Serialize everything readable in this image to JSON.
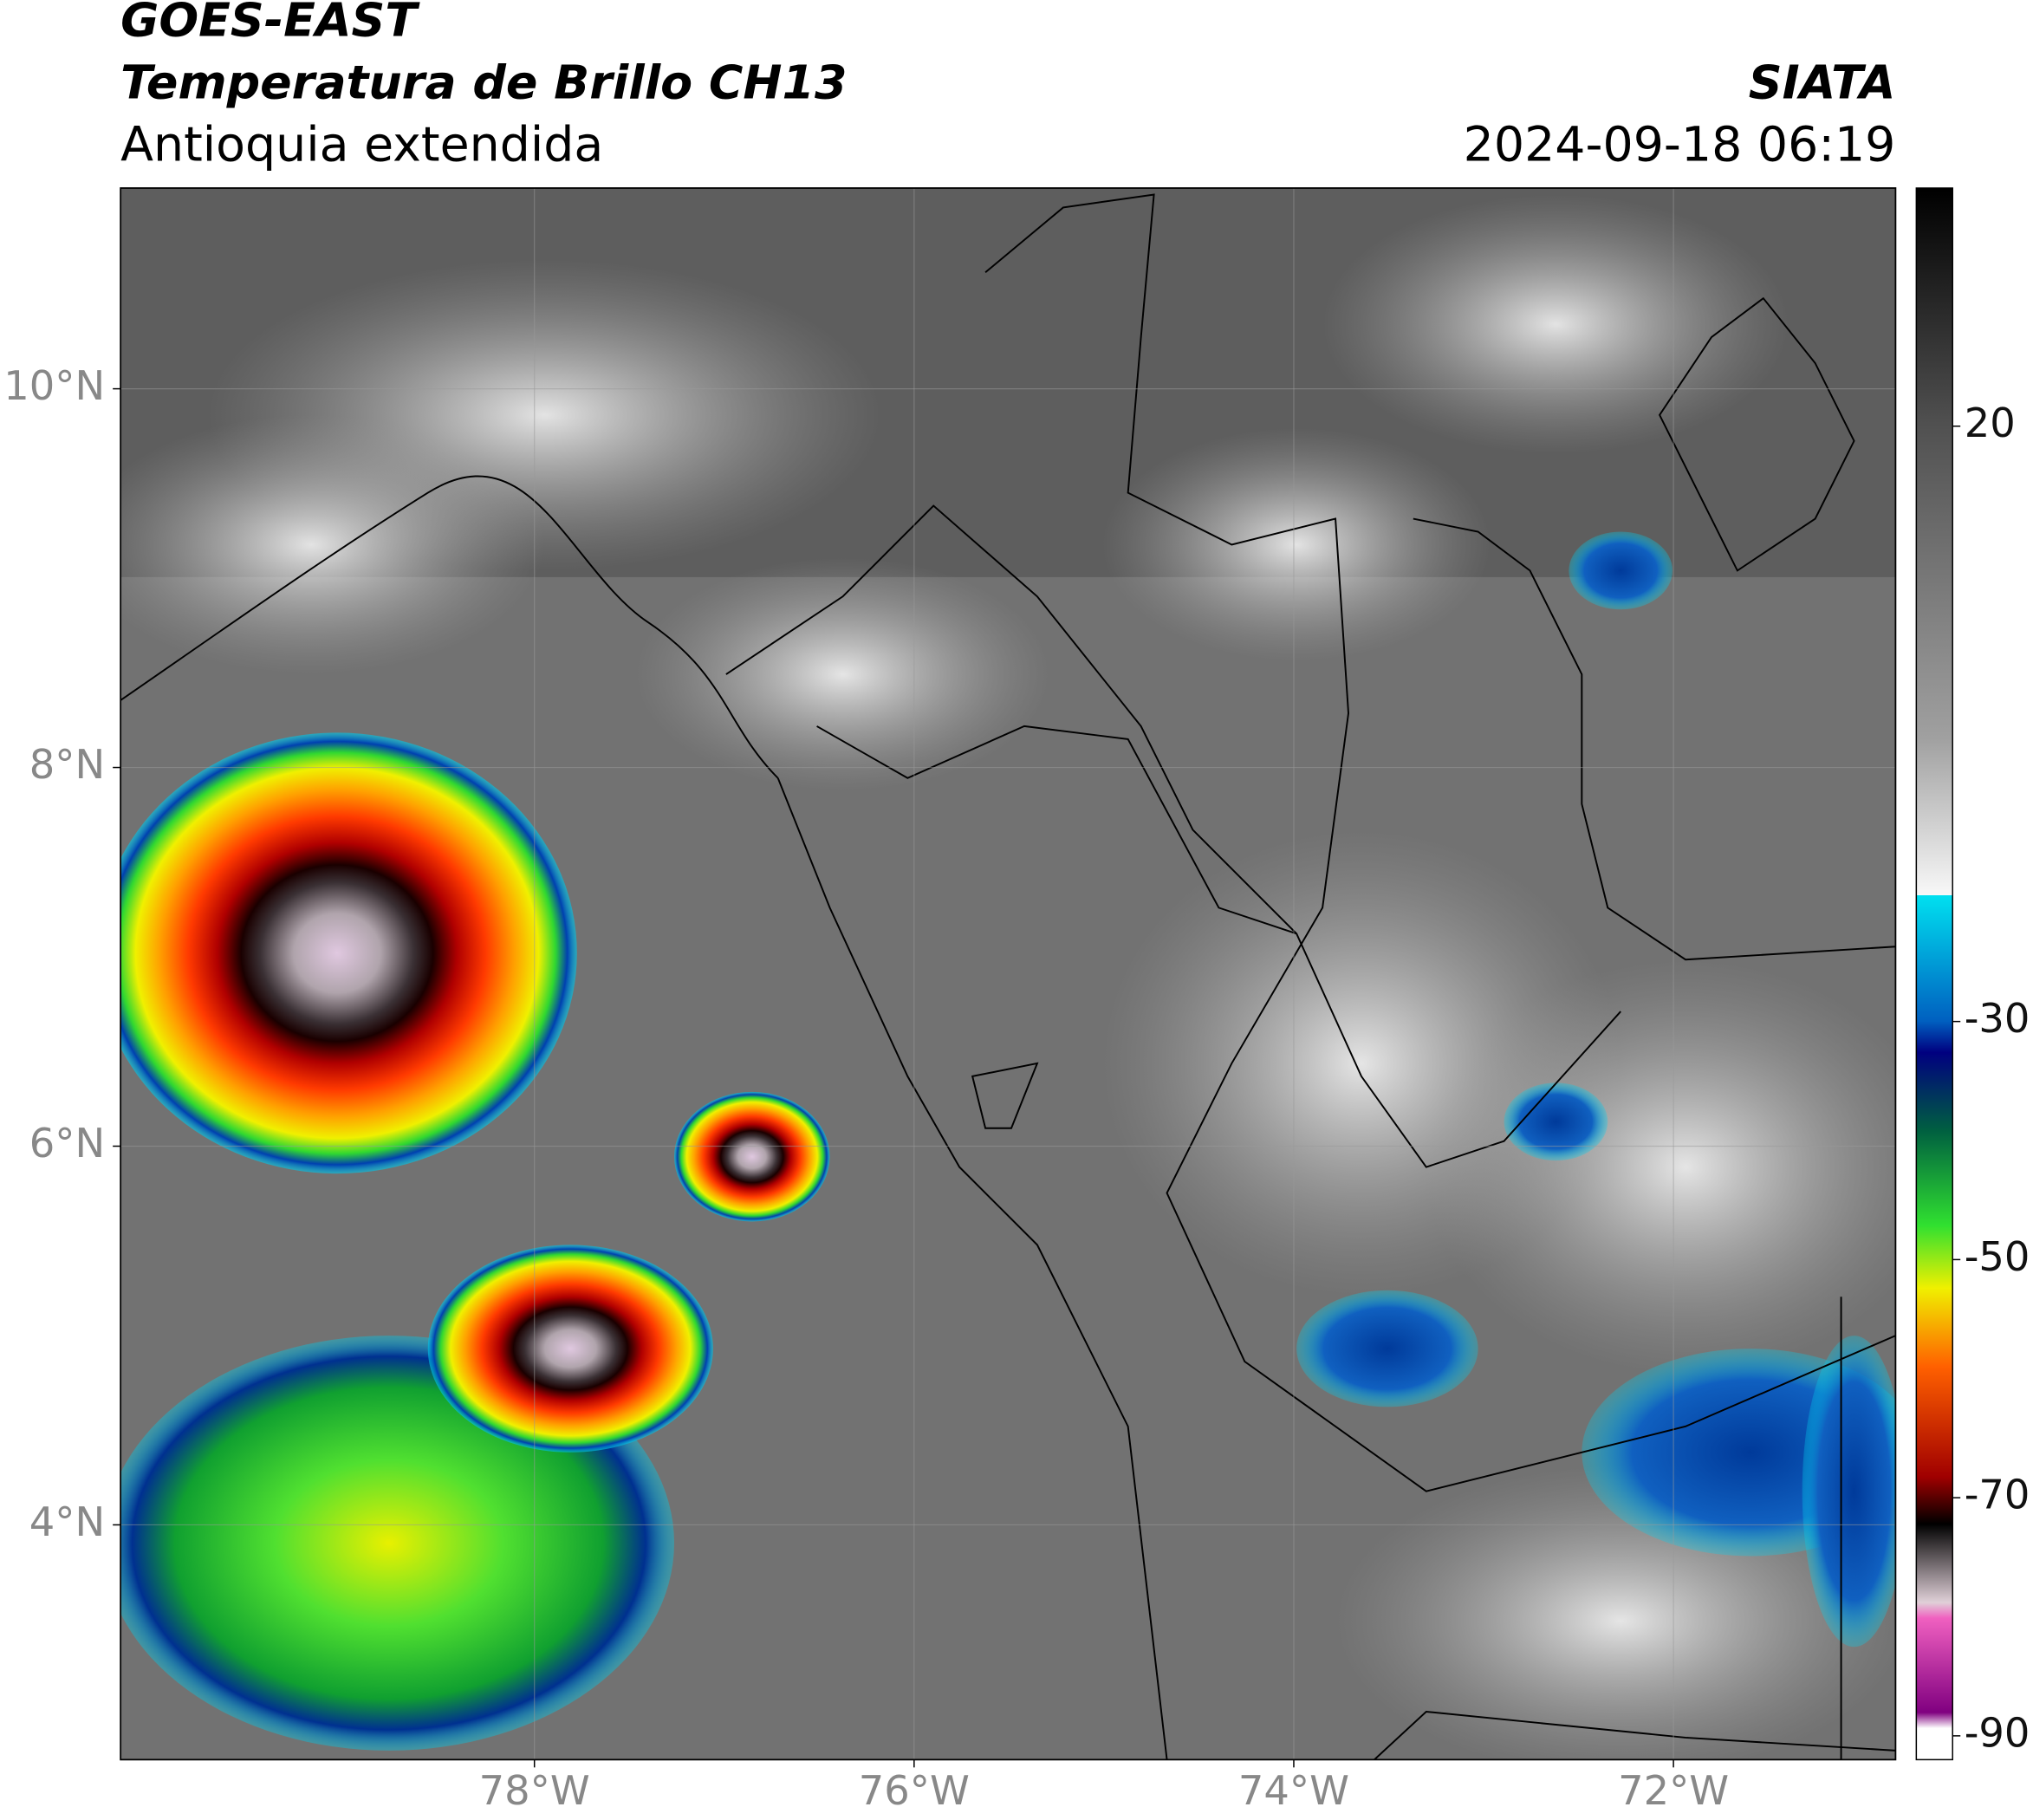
{
  "header": {
    "title": "GOES-EAST",
    "subtitle": "Temperatura de Brillo CH13",
    "region": "Antioquia extendida",
    "source": "SIATA",
    "datetime": "2024-09-18 06:19"
  },
  "map": {
    "xlim": [
      -80.18,
      -70.83
    ],
    "ylim": [
      2.76,
      11.06
    ],
    "xticks": [
      {
        "value": -78,
        "label": "78°W"
      },
      {
        "value": -76,
        "label": "76°W"
      },
      {
        "value": -74,
        "label": "74°W"
      },
      {
        "value": -72,
        "label": "72°W"
      }
    ],
    "yticks": [
      {
        "value": 10,
        "label": "10°N"
      },
      {
        "value": 8,
        "label": "8°N"
      },
      {
        "value": 6,
        "label": "6°N"
      },
      {
        "value": 4,
        "label": "4°N"
      }
    ],
    "grid": true
  },
  "colorbar": {
    "lim": [
      -92,
      40
    ],
    "ticks": [
      20,
      -30,
      -50,
      -70,
      -90
    ]
  }
}
